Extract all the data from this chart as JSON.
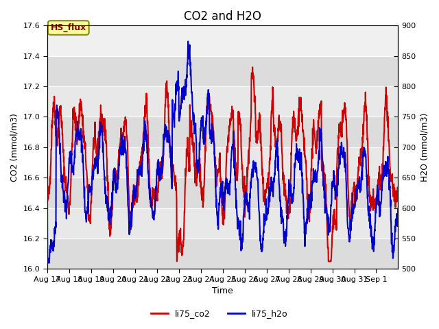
{
  "title": "CO2 and H2O",
  "xlabel": "Time",
  "ylabel_left": "CO2 (mmol/m3)",
  "ylabel_right": "H2O (mmol/m3)",
  "xlim_days": [
    17,
    33
  ],
  "ylim_left": [
    16.0,
    17.6
  ],
  "ylim_right": [
    500,
    900
  ],
  "xtick_labels": [
    "Aug 17",
    "Aug 18",
    "Aug 19",
    "Aug 20",
    "Aug 21",
    "Aug 22",
    "Aug 23",
    "Aug 24",
    "Aug 25",
    "Aug 26",
    "Aug 27",
    "Aug 28",
    "Aug 29",
    "Aug 30",
    "Aug 31",
    "Sep 1"
  ],
  "yticks_left": [
    16.0,
    16.2,
    16.4,
    16.6,
    16.8,
    17.0,
    17.2,
    17.4,
    17.6
  ],
  "yticks_right": [
    500,
    550,
    600,
    650,
    700,
    750,
    800,
    850,
    900
  ],
  "legend_entries": [
    "li75_co2",
    "li75_h2o"
  ],
  "annotation_text": "HS_flux",
  "annotation_bg": "#FFFFA0",
  "annotation_border": "#888800",
  "band_colors": [
    "#DCDCDC",
    "#E8E8E8"
  ],
  "top_band_color": "#F0F0F0",
  "line_color_co2": "#CC0000",
  "line_color_h2o": "#0000CC",
  "line_width": 1.5,
  "title_fontsize": 12,
  "axis_fontsize": 9,
  "tick_fontsize": 8,
  "annot_fontsize": 9
}
